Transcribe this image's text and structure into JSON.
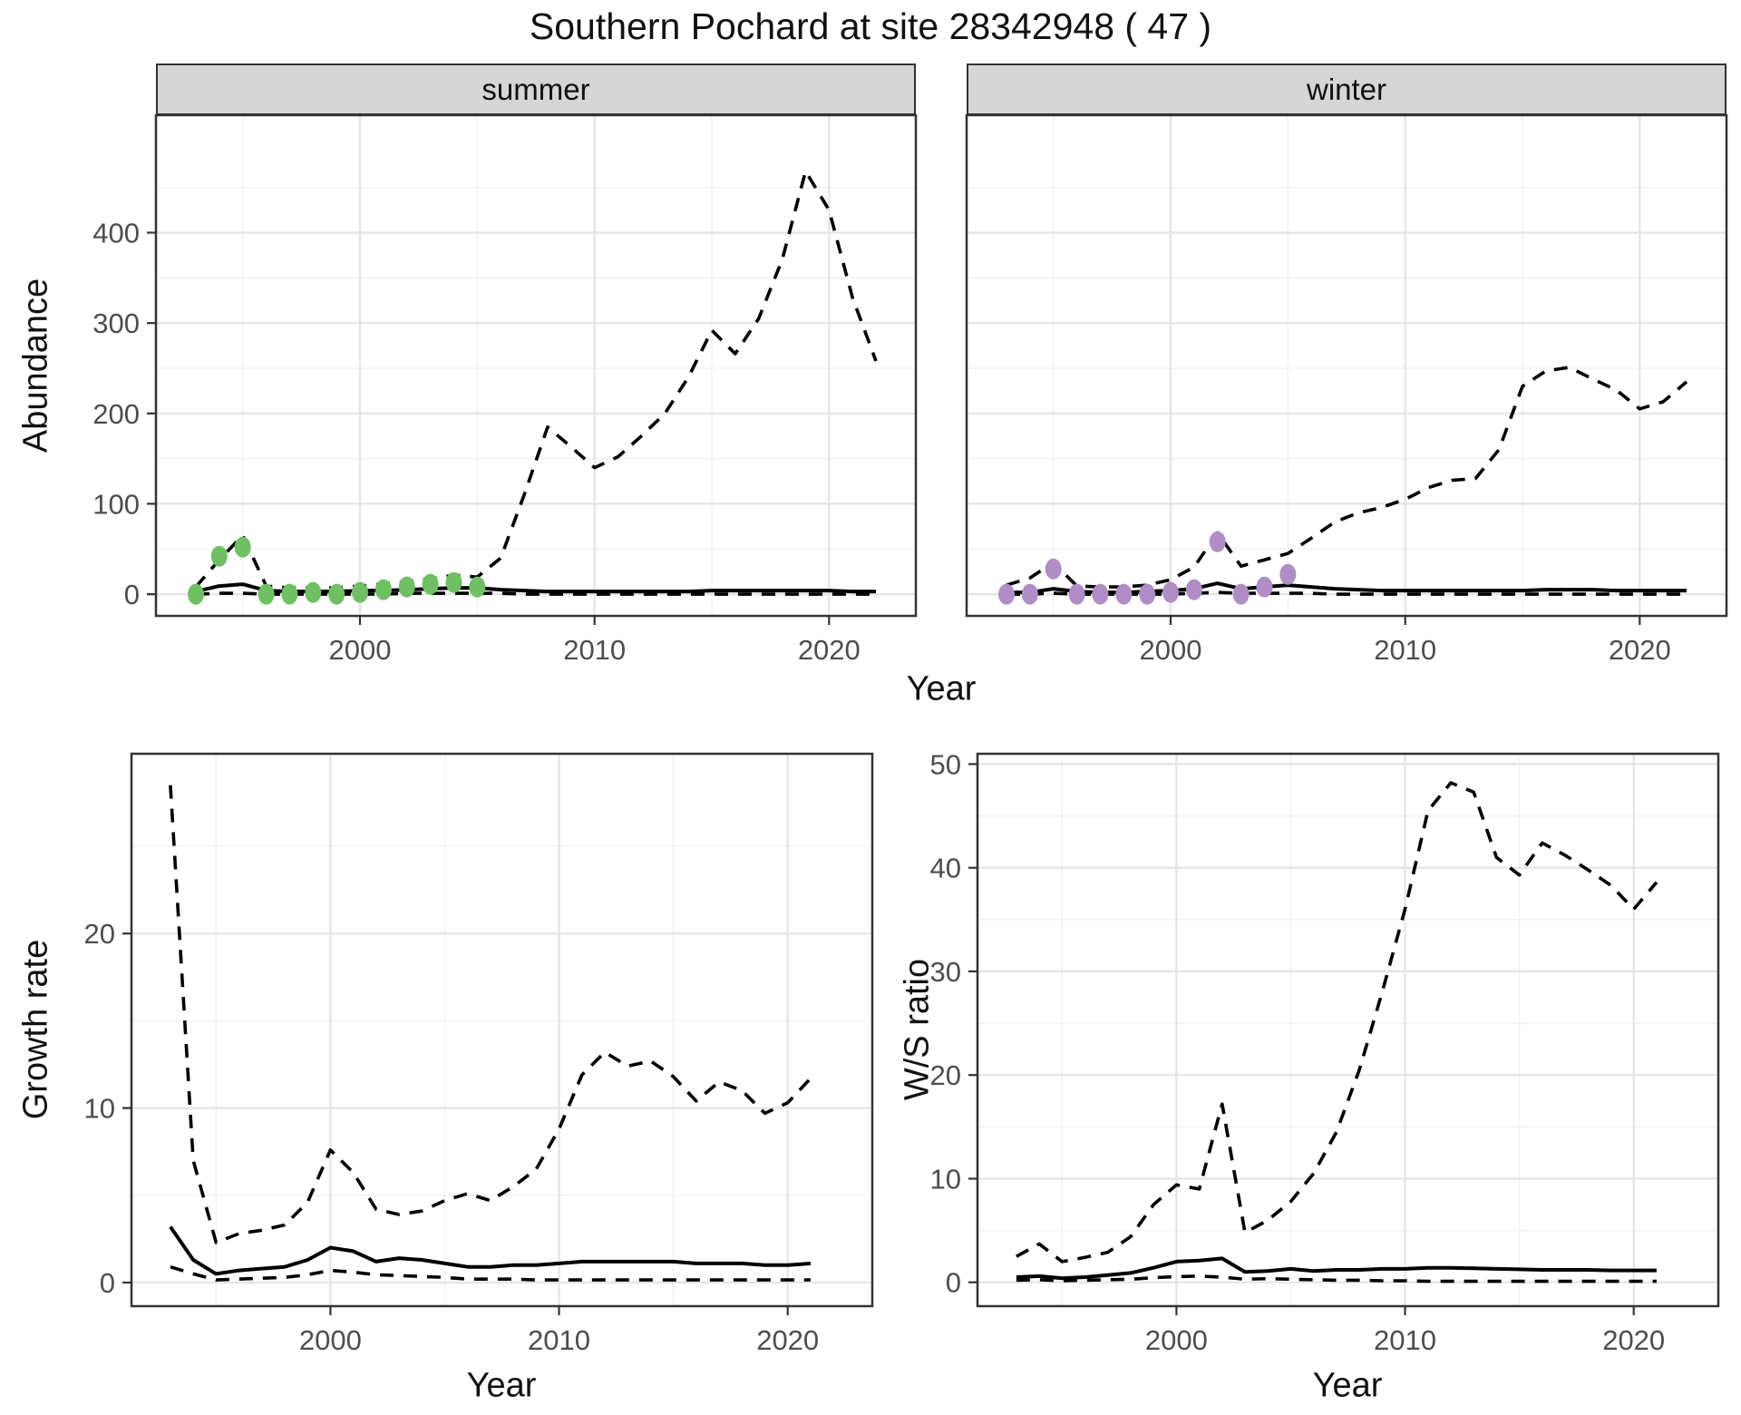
{
  "title": "Southern Pochard at site 28342948 ( 47 )",
  "labels": {
    "abundance": "Abundance",
    "growth_rate": "Growth rate",
    "ws_ratio": "W/S ratio",
    "year": "Year"
  },
  "facets": [
    {
      "label": "summer"
    },
    {
      "label": "winter"
    }
  ],
  "colors": {
    "points_summer": "#6fbf63",
    "points_winter": "#b08dc6",
    "line": "#000000",
    "strip_bg": "#d6d6d6",
    "grid_major": "#e4e4e4",
    "grid_minor": "#f3f3f3",
    "panel_border": "#333333",
    "tick_text": "#4d4d4d"
  },
  "chart_data": [
    {
      "panel_id": "panel-abundance-summer",
      "type": "line",
      "facet": "summer",
      "xlabel": "Year",
      "ylabel": "Abundance",
      "xlim": [
        1991.3,
        2023.7
      ],
      "ylim": [
        -24,
        530
      ],
      "x_ticks": [
        2000,
        2010,
        2020
      ],
      "x_minor": [
        1995,
        2005,
        2015
      ],
      "y_ticks": [
        0,
        100,
        200,
        300,
        400
      ],
      "y_minor": [
        50,
        150,
        250,
        350,
        450
      ],
      "show_y_labels": true,
      "grid": true,
      "years": [
        1993,
        1994,
        1995,
        1996,
        1997,
        1998,
        1999,
        2000,
        2001,
        2002,
        2003,
        2004,
        2005,
        2006,
        2007,
        2008,
        2009,
        2010,
        2011,
        2012,
        2013,
        2014,
        2015,
        2016,
        2017,
        2018,
        2019,
        2020,
        2021,
        2022
      ],
      "series": [
        {
          "name": "upper-ci",
          "style": "dashed",
          "y": [
            8,
            38,
            65,
            9,
            7,
            7,
            7,
            9,
            11,
            14,
            17,
            21,
            19,
            40,
            110,
            185,
            163,
            140,
            152,
            175,
            200,
            240,
            292,
            266,
            305,
            370,
            468,
            425,
            328,
            258
          ]
        },
        {
          "name": "lower-ci",
          "style": "dashed",
          "y": [
            0,
            1,
            1,
            0,
            0,
            0,
            0,
            0,
            0,
            1,
            1,
            1,
            1,
            1,
            0,
            0,
            0,
            0,
            0,
            0,
            0,
            0,
            0,
            0,
            0,
            0,
            0,
            0,
            0,
            0
          ]
        },
        {
          "name": "fitted-median",
          "style": "solid",
          "y": [
            3,
            9,
            11,
            4,
            3,
            3,
            3,
            4,
            4,
            5,
            6,
            7,
            7,
            5,
            4,
            3,
            3,
            3,
            3,
            3,
            3,
            3,
            4,
            4,
            4,
            4,
            4,
            4,
            3,
            3
          ]
        }
      ],
      "points": {
        "name": "observed-counts-summer",
        "color_key": "points_summer",
        "years": [
          1993,
          1994,
          1995,
          1996,
          1997,
          1998,
          1999,
          2000,
          2001,
          2002,
          2003,
          2004,
          2005
        ],
        "values": [
          0,
          42,
          52,
          0,
          0,
          2,
          0,
          2,
          5,
          8,
          11,
          13,
          8
        ]
      }
    },
    {
      "panel_id": "panel-abundance-winter",
      "type": "line",
      "facet": "winter",
      "xlabel": "Year",
      "ylabel": "Abundance",
      "xlim": [
        1991.3,
        2023.7
      ],
      "ylim": [
        -24,
        530
      ],
      "x_ticks": [
        2000,
        2010,
        2020
      ],
      "x_minor": [
        1995,
        2005,
        2015
      ],
      "y_ticks": [
        0,
        100,
        200,
        300,
        400
      ],
      "y_minor": [
        50,
        150,
        250,
        350,
        450
      ],
      "show_y_labels": false,
      "grid": true,
      "years": [
        1993,
        1994,
        1995,
        1996,
        1997,
        1998,
        1999,
        2000,
        2001,
        2002,
        2003,
        2004,
        2005,
        2006,
        2007,
        2008,
        2009,
        2010,
        2011,
        2012,
        2013,
        2014,
        2015,
        2016,
        2017,
        2018,
        2019,
        2020,
        2021,
        2022
      ],
      "series": [
        {
          "name": "upper-ci",
          "style": "dashed",
          "y": [
            10,
            18,
            35,
            9,
            8,
            8,
            10,
            16,
            30,
            68,
            31,
            38,
            45,
            62,
            80,
            90,
            96,
            105,
            118,
            126,
            128,
            160,
            230,
            247,
            251,
            238,
            226,
            205,
            213,
            235
          ]
        },
        {
          "name": "lower-ci",
          "style": "dashed",
          "y": [
            0,
            0,
            1,
            0,
            0,
            0,
            0,
            0,
            1,
            2,
            1,
            1,
            1,
            1,
            0,
            0,
            0,
            0,
            0,
            0,
            0,
            0,
            0,
            0,
            0,
            0,
            0,
            0,
            0,
            0
          ]
        },
        {
          "name": "fitted-median",
          "style": "solid",
          "y": [
            2,
            2,
            6,
            3,
            2,
            2,
            3,
            4,
            6,
            12,
            6,
            8,
            10,
            8,
            6,
            5,
            4,
            4,
            4,
            4,
            4,
            4,
            4,
            5,
            5,
            5,
            4,
            4,
            4,
            4
          ]
        }
      ],
      "points": {
        "name": "observed-counts-winter",
        "color_key": "points_winter",
        "years": [
          1993,
          1994,
          1995,
          1996,
          1997,
          1998,
          1999,
          2000,
          2001,
          2002,
          2003,
          2004,
          2005
        ],
        "values": [
          0,
          0,
          28,
          0,
          0,
          0,
          0,
          2,
          5,
          58,
          0,
          8,
          22
        ]
      }
    },
    {
      "panel_id": "panel-growth-rate",
      "type": "line",
      "facet": null,
      "xlabel": "Year",
      "ylabel": "Growth rate",
      "xlim": [
        1991.3,
        2023.7
      ],
      "ylim": [
        -1.35,
        30.3
      ],
      "x_ticks": [
        2000,
        2010,
        2020
      ],
      "x_minor": [
        1995,
        2005,
        2015
      ],
      "y_ticks": [
        0,
        10,
        20
      ],
      "y_minor": [
        5,
        15,
        25
      ],
      "show_y_labels": true,
      "grid": true,
      "years": [
        1993,
        1994,
        1995,
        1996,
        1997,
        1998,
        1999,
        2000,
        2001,
        2002,
        2003,
        2004,
        2005,
        2006,
        2007,
        2008,
        2009,
        2010,
        2011,
        2012,
        2013,
        2014,
        2015,
        2016,
        2017,
        2018,
        2019,
        2020,
        2021
      ],
      "series": [
        {
          "name": "upper-ci",
          "style": "dashed",
          "y": [
            28.5,
            7.0,
            2.3,
            2.8,
            3.0,
            3.3,
            4.6,
            7.6,
            6.3,
            4.2,
            3.9,
            4.1,
            4.7,
            5.1,
            4.7,
            5.5,
            6.5,
            8.8,
            11.9,
            13.2,
            12.4,
            12.7,
            11.8,
            10.4,
            11.5,
            11.0,
            9.7,
            10.3,
            11.7
          ]
        },
        {
          "name": "lower-ci",
          "style": "dashed",
          "y": [
            0.9,
            0.5,
            0.15,
            0.2,
            0.25,
            0.3,
            0.45,
            0.7,
            0.6,
            0.45,
            0.4,
            0.35,
            0.3,
            0.2,
            0.2,
            0.2,
            0.15,
            0.15,
            0.15,
            0.15,
            0.15,
            0.15,
            0.15,
            0.15,
            0.15,
            0.15,
            0.15,
            0.15,
            0.15
          ]
        },
        {
          "name": "fitted-median",
          "style": "solid",
          "y": [
            3.2,
            1.3,
            0.5,
            0.7,
            0.8,
            0.9,
            1.3,
            2.0,
            1.8,
            1.2,
            1.4,
            1.3,
            1.1,
            0.9,
            0.9,
            1.0,
            1.0,
            1.1,
            1.2,
            1.2,
            1.2,
            1.2,
            1.2,
            1.1,
            1.1,
            1.1,
            1.0,
            1.0,
            1.1
          ]
        }
      ],
      "points": null
    },
    {
      "panel_id": "panel-ws-ratio",
      "type": "line",
      "facet": null,
      "xlabel": "Year",
      "ylabel": "W/S ratio",
      "xlim": [
        1991.3,
        2023.7
      ],
      "ylim": [
        -2.3,
        51.0
      ],
      "x_ticks": [
        2000,
        2010,
        2020
      ],
      "x_minor": [
        1995,
        2005,
        2015
      ],
      "y_ticks": [
        0,
        10,
        20,
        30,
        40,
        50
      ],
      "y_minor": [
        5,
        15,
        25,
        35,
        45
      ],
      "show_y_labels": true,
      "grid": true,
      "years": [
        1993,
        1994,
        1995,
        1996,
        1997,
        1998,
        1999,
        2000,
        2001,
        2002,
        2003,
        2004,
        2005,
        2006,
        2007,
        2008,
        2009,
        2010,
        2011,
        2012,
        2013,
        2014,
        2015,
        2016,
        2017,
        2018,
        2019,
        2020,
        2021
      ],
      "series": [
        {
          "name": "upper-ci",
          "style": "dashed",
          "y": [
            2.5,
            3.7,
            2.0,
            2.4,
            2.9,
            4.4,
            7.5,
            9.4,
            9.0,
            17.2,
            4.8,
            6.0,
            7.8,
            10.5,
            14.5,
            20.5,
            28.0,
            36.0,
            45.5,
            48.2,
            47.3,
            41.0,
            39.3,
            42.4,
            41.2,
            39.8,
            38.3,
            36.0,
            38.6
          ]
        },
        {
          "name": "lower-ci",
          "style": "dashed",
          "y": [
            0.2,
            0.25,
            0.15,
            0.2,
            0.25,
            0.3,
            0.45,
            0.55,
            0.6,
            0.5,
            0.3,
            0.35,
            0.3,
            0.25,
            0.2,
            0.2,
            0.15,
            0.15,
            0.1,
            0.1,
            0.1,
            0.1,
            0.1,
            0.1,
            0.1,
            0.1,
            0.1,
            0.1,
            0.1
          ]
        },
        {
          "name": "fitted-median",
          "style": "solid",
          "y": [
            0.5,
            0.6,
            0.4,
            0.5,
            0.7,
            0.9,
            1.4,
            2.0,
            2.1,
            2.3,
            1.0,
            1.1,
            1.3,
            1.1,
            1.2,
            1.2,
            1.3,
            1.3,
            1.4,
            1.4,
            1.35,
            1.3,
            1.25,
            1.2,
            1.2,
            1.2,
            1.15,
            1.15,
            1.15
          ]
        }
      ],
      "points": null
    }
  ]
}
